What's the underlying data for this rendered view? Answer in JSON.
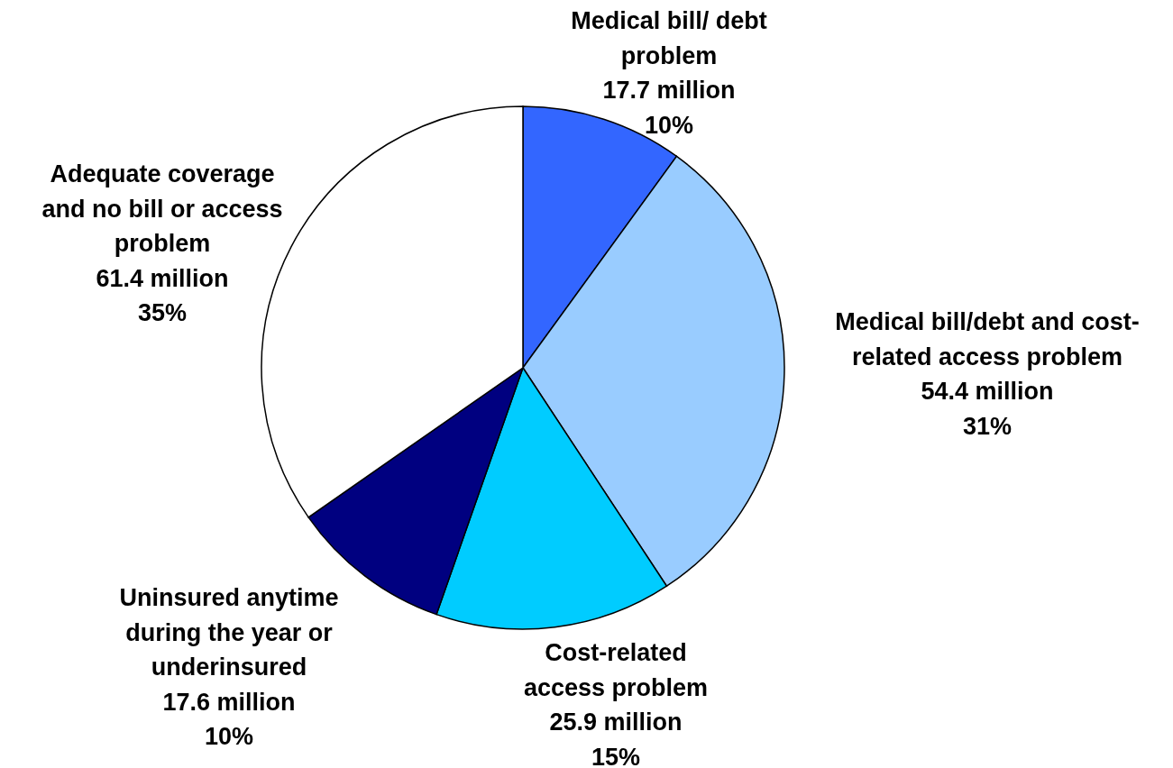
{
  "chart_data": {
    "type": "pie",
    "categories": [
      "Medical bill/ debt problem",
      "Medical bill/debt and cost-related access problem",
      "Cost-related access problem",
      "Uninsured anytime during the year or underinsured",
      "Adequate coverage and no bill or access problem"
    ],
    "values": [
      17.7,
      54.4,
      25.9,
      17.6,
      61.4
    ],
    "value_labels": [
      "17.7 million",
      "54.4 million",
      "25.9 million",
      "17.6 million",
      "61.4 million"
    ],
    "annotations": [
      "10%",
      "31%",
      "15%",
      "10%",
      "35%"
    ],
    "colors": [
      "#3366ff",
      "#99ccff",
      "#00ccff",
      "#000080",
      "#ffffff"
    ]
  }
}
